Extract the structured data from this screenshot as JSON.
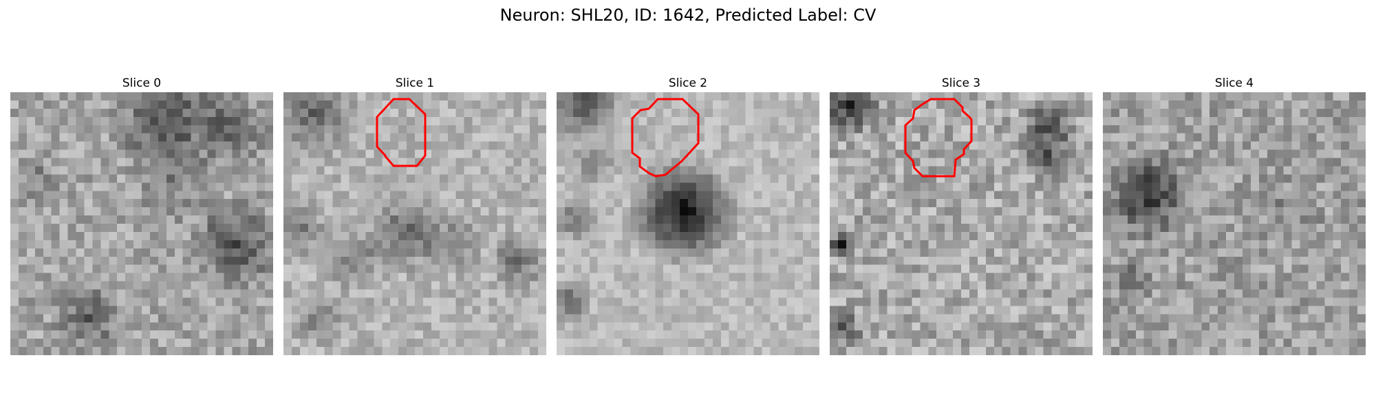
{
  "figure": {
    "title": "Neuron: SHL20, ID: 1642, Predicted Label: CV",
    "grid_size": 32,
    "contour_color": "#ff0000"
  },
  "slices": [
    {
      "title": "Slice 0",
      "has_contour": false
    },
    {
      "title": "Slice 1",
      "has_contour": true
    },
    {
      "title": "Slice 2",
      "has_contour": true
    },
    {
      "title": "Slice 3",
      "has_contour": true
    },
    {
      "title": "Slice 4",
      "has_contour": false
    }
  ]
}
